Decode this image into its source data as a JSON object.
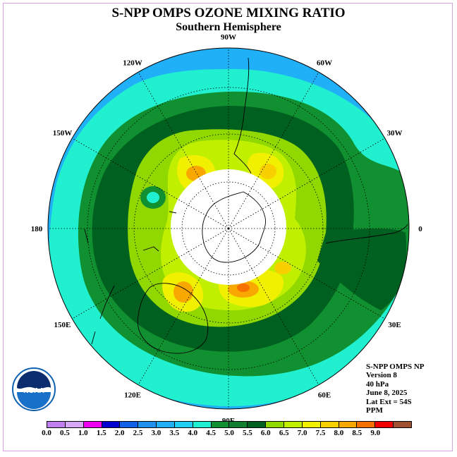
{
  "title": "S-NPP OMPS OZONE MIXING RATIO",
  "subtitle": "Southern Hemisphere",
  "map": {
    "projection": "south polar stereographic",
    "lat_extent": "54S",
    "no_data_region": "polar night (white disk)",
    "longitude_labels": [
      {
        "text": "90W",
        "lon": -90
      },
      {
        "text": "60W",
        "lon": -60
      },
      {
        "text": "30W",
        "lon": -30
      },
      {
        "text": "0",
        "lon": 0
      },
      {
        "text": "30E",
        "lon": 30
      },
      {
        "text": "60E",
        "lon": 60
      },
      {
        "text": "90E",
        "lon": 90
      },
      {
        "text": "120E",
        "lon": 120
      },
      {
        "text": "150E",
        "lon": 150
      },
      {
        "text": "180",
        "lon": 180
      },
      {
        "text": "150W",
        "lon": -150
      },
      {
        "text": "120W",
        "lon": -120
      }
    ]
  },
  "info": {
    "line1": "S-NPP OMPS NP",
    "line2": "Version 8",
    "line3": "40 hPa",
    "line4": "June 8, 2025",
    "line5": "Lat Ext = 54S",
    "line6": "PPM"
  },
  "logo": {
    "text": "NOAA",
    "ring_text": "NATIONAL OCEANIC AND ATMOSPHERIC ADMINISTRATION · U.S. DEPARTMENT OF COMMERCE"
  },
  "colorbar": {
    "colors": [
      "#c080f0",
      "#d8a8f8",
      "#f000f0",
      "#0000d0",
      "#1060e8",
      "#2090f0",
      "#20b0f8",
      "#20d0f8",
      "#20f0d0",
      "#109030",
      "#108030",
      "#006020",
      "#90d800",
      "#c0f000",
      "#f0f000",
      "#f8d000",
      "#f8a800",
      "#f87000",
      "#f00000",
      "#a05030"
    ],
    "ticks": [
      "0.0",
      "0.5",
      "1.0",
      "1.5",
      "2.0",
      "2.5",
      "3.0",
      "3.5",
      "4.0",
      "4.5",
      "5.0",
      "5.5",
      "6.0",
      "6.5",
      "7.0",
      "7.5",
      "8.0",
      "8.5",
      "9.0"
    ],
    "unit": "PPM"
  }
}
